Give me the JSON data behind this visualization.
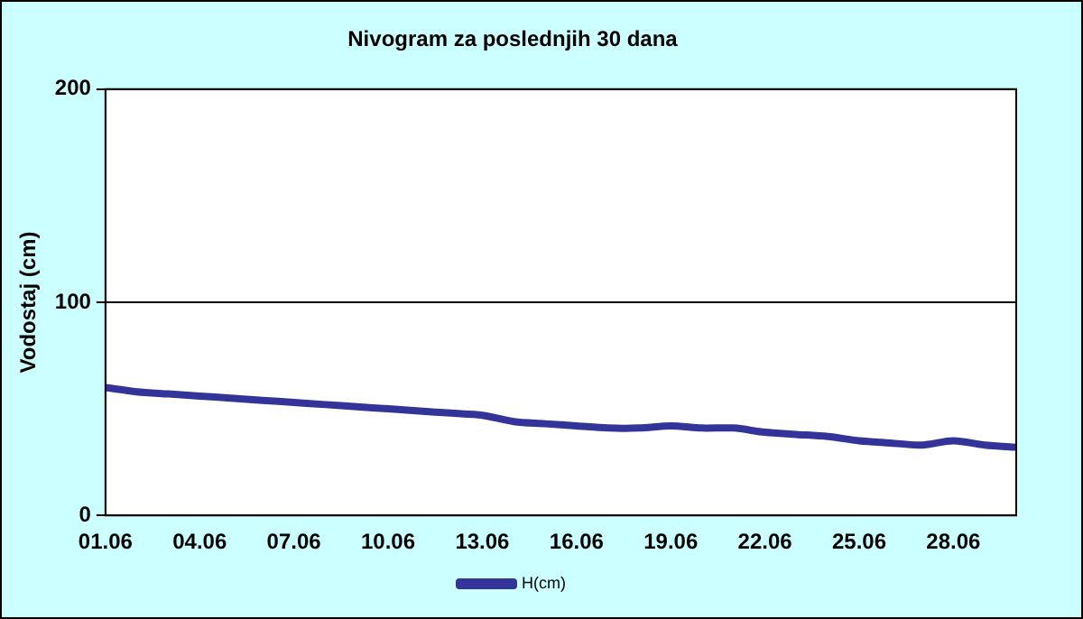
{
  "chart_data": {
    "type": "line",
    "title": "Nivogram za poslednjih 30 dana",
    "ylabel": "Vodostaj (cm)",
    "categories": [
      "01.06",
      null,
      null,
      "04.06",
      null,
      null,
      "07.06",
      null,
      null,
      "10.06",
      null,
      null,
      "13.06",
      null,
      null,
      "16.06",
      null,
      null,
      "19.06",
      null,
      null,
      "22.06",
      null,
      null,
      "25.06",
      null,
      null,
      "28.06",
      null,
      null
    ],
    "series": [
      {
        "name": "H(cm)",
        "color": "#333399",
        "values": [
          60,
          58,
          57,
          56,
          55,
          54,
          53,
          52,
          51,
          50,
          49,
          48,
          47,
          44,
          43,
          42,
          41,
          41,
          42,
          41,
          41,
          39,
          38,
          37,
          35,
          34,
          33,
          35,
          33,
          32
        ]
      }
    ],
    "ylim": [
      0,
      200
    ],
    "yticks": [
      0,
      100,
      200
    ],
    "grid": "y",
    "legend": "bottom",
    "marker": "none",
    "line_style": "solid"
  }
}
